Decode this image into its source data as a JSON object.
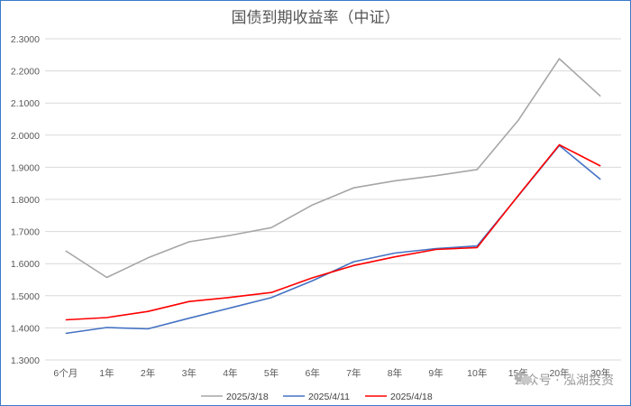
{
  "chart_data": {
    "type": "line",
    "title": "国债到期收益率（中证）",
    "categories": [
      "6个月",
      "1年",
      "2年",
      "3年",
      "4年",
      "5年",
      "6年",
      "7年",
      "8年",
      "9年",
      "10年",
      "15年",
      "20年",
      "30年"
    ],
    "ylim": [
      1.3,
      2.3
    ],
    "yticks": [
      "1.3000",
      "1.4000",
      "1.5000",
      "1.6000",
      "1.7000",
      "1.8000",
      "1.9000",
      "2.0000",
      "2.1000",
      "2.2000",
      "2.3000"
    ],
    "grid": true,
    "legend": "bottom",
    "series": [
      {
        "name": "2025/3/18",
        "color": "#a6a6a6",
        "values": [
          1.64,
          1.557,
          1.618,
          1.668,
          1.688,
          1.712,
          1.783,
          1.836,
          1.858,
          1.874,
          1.893,
          2.046,
          2.238,
          2.121
        ]
      },
      {
        "name": "2025/4/11",
        "color": "#4472c4",
        "values": [
          1.383,
          1.401,
          1.397,
          1.43,
          1.462,
          1.494,
          1.547,
          1.606,
          1.633,
          1.647,
          1.655,
          1.811,
          1.968,
          1.862
        ]
      },
      {
        "name": "2025/4/18",
        "color": "#ff0000",
        "values": [
          1.425,
          1.432,
          1.451,
          1.482,
          1.495,
          1.51,
          1.556,
          1.594,
          1.621,
          1.644,
          1.65,
          1.812,
          1.97,
          1.904
        ]
      }
    ]
  },
  "watermark": {
    "text": "公众号 · 泓湖投资",
    "icon": "wechat-icon"
  }
}
